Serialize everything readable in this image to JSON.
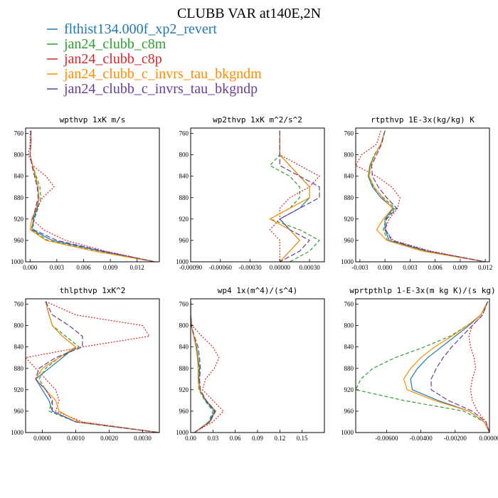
{
  "figure": {
    "title": "CLUBB VAR at140E,2N"
  },
  "legend": [
    {
      "label": "flthist134.000f_xp2_revert",
      "color": "#1f77b4",
      "dash": "solid"
    },
    {
      "label": "jan24_clubb_c8m",
      "color": "#2ca02c",
      "dash": "solid"
    },
    {
      "label": "jan24_clubb_c8p",
      "color": "#d62728",
      "dash": "solid"
    },
    {
      "label": "jan24_clubb_c_invrs_tau_bkgndm",
      "color": "#ff8c00",
      "dash": "solid"
    },
    {
      "label": "jan24_clubb_c_invrs_tau_bkgndp",
      "color": "#6a3d9a",
      "dash": "solid"
    }
  ],
  "series_styles": [
    {
      "color": "#1f77b4",
      "dash": ""
    },
    {
      "color": "#2ca02c",
      "dash": "5,3"
    },
    {
      "color": "#d62728",
      "dash": "2,2"
    },
    {
      "color": "#ff8c00",
      "dash": ""
    },
    {
      "color": "#6a3d9a",
      "dash": "7,3"
    }
  ],
  "chart_data": [
    {
      "type": "line",
      "title": "wpthvp  1xK m/s",
      "xlim": [
        -0.0005,
        0.0145
      ],
      "ylim": [
        1000,
        750
      ],
      "xticks": [
        0.0,
        0.003,
        0.006,
        0.009,
        0.012
      ],
      "xtick_labels": [
        "0.000",
        "0.003",
        "0.006",
        "0.009",
        "0.012"
      ],
      "yticks": [
        760,
        800,
        840,
        880,
        920,
        960,
        1000
      ],
      "y": [
        755,
        780,
        800,
        820,
        840,
        860,
        880,
        900,
        920,
        940,
        960,
        980,
        1000
      ],
      "series": [
        {
          "values": [
            0.0001,
            0.0001,
            0.0,
            0.0003,
            0.0006,
            0.0009,
            0.001,
            0.0008,
            0.0004,
            0.0002,
            0.0025,
            0.008,
            0.014
          ]
        },
        {
          "values": [
            0.0001,
            0.0001,
            0.0,
            0.0003,
            0.0007,
            0.0011,
            0.0012,
            0.0009,
            0.0005,
            0.0001,
            0.002,
            0.0075,
            0.014
          ]
        },
        {
          "values": [
            0.0,
            0.0,
            -0.0002,
            0.0003,
            0.0018,
            0.0027,
            0.0014,
            0.0008,
            0.0002,
            0.0015,
            0.004,
            0.0085,
            0.014
          ]
        },
        {
          "values": [
            0.0001,
            0.0001,
            0.0,
            0.0003,
            0.0006,
            0.0009,
            0.001,
            0.0007,
            0.0002,
            0.0,
            0.0018,
            0.0072,
            0.014
          ]
        },
        {
          "values": [
            0.0001,
            0.0001,
            0.0,
            0.0002,
            0.0005,
            0.0008,
            0.0009,
            0.0006,
            0.0003,
            0.0004,
            0.003,
            0.0082,
            0.014
          ]
        }
      ]
    },
    {
      "type": "line",
      "title": "wp2thvp  1xK m^2/s^2",
      "xlim": [
        -0.0009,
        0.00045
      ],
      "ylim": [
        1000,
        750
      ],
      "xticks": [
        -0.0009,
        -0.0006,
        -0.0003,
        0.0,
        0.0003
      ],
      "xtick_labels": [
        "-0.00090",
        "-0.00060",
        "-0.00030",
        "0.00000",
        "0.00030"
      ],
      "yticks": [
        760,
        800,
        840,
        880,
        920,
        960,
        1000
      ],
      "y": [
        755,
        780,
        800,
        820,
        840,
        860,
        880,
        900,
        920,
        940,
        960,
        980,
        1000
      ],
      "series": [
        {
          "values": [
            0.0,
            0.0,
            0.0,
            0.0001,
            0.0002,
            0.0003,
            0.0003,
            0.0002,
            0.0,
            0.0001,
            0.0002,
            0.0001,
            0.0
          ]
        },
        {
          "values": [
            0.0,
            0.0,
            0.0,
            -0.0001,
            0.0001,
            0.0002,
            0.0002,
            0.0001,
            -0.0001,
            0.0002,
            0.0004,
            0.0003,
            0.0001
          ]
        },
        {
          "values": [
            0.0,
            0.0,
            0.0,
            0.0002,
            0.0004,
            0.0003,
            0.0001,
            0.0,
            0.0,
            -0.0001,
            0.0,
            0.0,
            0.0
          ]
        },
        {
          "values": [
            0.0,
            0.0,
            0.0,
            0.0001,
            0.0002,
            0.0003,
            0.0003,
            0.0001,
            -0.0001,
            0.0001,
            0.0002,
            0.0001,
            0.0
          ]
        },
        {
          "values": [
            0.0,
            0.0,
            0.0,
            0.0,
            0.0002,
            0.0004,
            0.0004,
            0.0002,
            0.0,
            0.0001,
            0.0003,
            0.0002,
            0.0
          ]
        }
      ]
    },
    {
      "type": "line",
      "title": "rtpthvp  1E-3x(kg/kg) K",
      "xlim": [
        -0.0035,
        0.0125
      ],
      "ylim": [
        1000,
        750
      ],
      "xticks": [
        -0.003,
        0.0,
        0.003,
        0.006,
        0.009,
        0.012
      ],
      "xtick_labels": [
        "-0.003",
        "0.000",
        "0.003",
        "0.006",
        "0.009",
        "0.012"
      ],
      "yticks": [
        760,
        800,
        840,
        880,
        920,
        960,
        1000
      ],
      "y": [
        755,
        780,
        800,
        820,
        840,
        860,
        880,
        900,
        920,
        940,
        960,
        980,
        1000
      ],
      "series": [
        {
          "values": [
            0.0,
            -0.0005,
            -0.0012,
            -0.0018,
            -0.002,
            -0.0015,
            -0.0005,
            0.001,
            0.0,
            0.0,
            0.0005,
            0.005,
            0.012
          ]
        },
        {
          "values": [
            0.0,
            -0.0005,
            -0.0013,
            -0.0018,
            -0.002,
            -0.0014,
            -0.0002,
            0.0012,
            0.0001,
            -0.0002,
            0.0003,
            0.0048,
            0.012
          ]
        },
        {
          "values": [
            -0.0005,
            -0.001,
            -0.0028,
            -0.0035,
            -0.001,
            0.0008,
            0.0018,
            0.0015,
            0.0005,
            0.0,
            0.001,
            0.0055,
            0.012
          ]
        },
        {
          "values": [
            0.0,
            -0.0005,
            -0.0012,
            -0.0017,
            -0.0019,
            -0.0013,
            -0.0003,
            0.0009,
            -0.0002,
            -0.001,
            0.0002,
            0.0045,
            0.012
          ]
        },
        {
          "values": [
            0.0,
            -0.0004,
            -0.001,
            -0.0016,
            -0.0015,
            -0.0008,
            0.0002,
            0.0014,
            0.0002,
            0.0001,
            0.0008,
            0.0052,
            0.012
          ]
        }
      ]
    },
    {
      "type": "line",
      "title": "thlpthvp  1xK^2",
      "xlim": [
        -0.0005,
        0.0035
      ],
      "ylim": [
        1000,
        750
      ],
      "xticks": [
        0.0,
        0.001,
        0.002,
        0.003
      ],
      "xtick_labels": [
        "0.0000",
        "0.0010",
        "0.0020",
        "0.0030"
      ],
      "yticks": [
        760,
        800,
        840,
        880,
        920,
        960,
        1000
      ],
      "y": [
        755,
        780,
        800,
        820,
        840,
        860,
        880,
        900,
        920,
        940,
        960,
        980,
        1000
      ],
      "series": [
        {
          "values": [
            0.0001,
            0.0002,
            0.0003,
            0.0006,
            0.001,
            0.0006,
            0.0002,
            -0.0002,
            0.0,
            0.0002,
            0.0003,
            0.001,
            0.0035
          ]
        },
        {
          "values": [
            0.0001,
            0.0002,
            0.0003,
            0.0007,
            0.0011,
            0.0005,
            0.0001,
            -0.0001,
            0.0001,
            0.0003,
            0.0002,
            0.001,
            0.0035
          ]
        },
        {
          "values": [
            0.0001,
            0.001,
            0.003,
            0.0032,
            0.0012,
            -0.0005,
            -0.0002,
            0.0001,
            0.0004,
            0.0005,
            0.0004,
            0.0012,
            0.0035
          ]
        },
        {
          "values": [
            0.0001,
            0.0002,
            0.0003,
            0.0006,
            0.001,
            0.0005,
            0.0,
            -0.0002,
            0.0001,
            0.0004,
            0.0005,
            0.0011,
            0.0035
          ]
        },
        {
          "values": [
            0.0001,
            0.0003,
            0.0008,
            0.0012,
            0.0012,
            0.0004,
            -0.0001,
            -0.0002,
            0.0001,
            0.0003,
            0.0003,
            0.001,
            0.0035
          ]
        }
      ]
    },
    {
      "type": "line",
      "title": "wp4  1x(m^4)/(s^4)",
      "xlim": [
        0.0,
        0.18
      ],
      "ylim": [
        1000,
        750
      ],
      "xticks": [
        0.0,
        0.03,
        0.06,
        0.09,
        0.12,
        0.15
      ],
      "xtick_labels": [
        "0.00",
        "0.03",
        "0.06",
        "0.09",
        "0.12",
        "0.15"
      ],
      "yticks": [
        760,
        800,
        840,
        880,
        920,
        960,
        1000
      ],
      "y": [
        755,
        780,
        800,
        820,
        840,
        860,
        880,
        900,
        920,
        940,
        960,
        980,
        1000
      ],
      "series": [
        {
          "values": [
            0.0,
            0.0,
            0.001,
            0.004,
            0.008,
            0.01,
            0.012,
            0.011,
            0.012,
            0.02,
            0.032,
            0.025,
            0.005
          ]
        },
        {
          "values": [
            0.0,
            0.0,
            0.001,
            0.004,
            0.008,
            0.01,
            0.011,
            0.01,
            0.011,
            0.019,
            0.03,
            0.024,
            0.005
          ]
        },
        {
          "values": [
            0.0,
            0.0,
            0.002,
            0.015,
            0.03,
            0.038,
            0.032,
            0.02,
            0.016,
            0.03,
            0.044,
            0.03,
            0.005
          ]
        },
        {
          "values": [
            0.0,
            0.0,
            0.001,
            0.004,
            0.007,
            0.009,
            0.01,
            0.01,
            0.012,
            0.021,
            0.034,
            0.026,
            0.005
          ]
        },
        {
          "values": [
            0.0,
            0.0,
            0.001,
            0.005,
            0.01,
            0.012,
            0.013,
            0.012,
            0.013,
            0.021,
            0.033,
            0.026,
            0.005
          ]
        }
      ]
    },
    {
      "type": "line",
      "title": "wprtpthlp  1-E-3x(m kg K)/(s kg)",
      "xlim": [
        -0.0078,
        0.0
      ],
      "ylim": [
        1000,
        750
      ],
      "xticks": [
        -0.006,
        -0.004,
        -0.002,
        0.0
      ],
      "xtick_labels": [
        "-0.00600",
        "-0.00400",
        "-0.00200",
        "0.00000"
      ],
      "yticks": [
        760,
        800,
        840,
        880,
        920,
        960,
        1000
      ],
      "y": [
        755,
        780,
        800,
        820,
        840,
        860,
        880,
        900,
        920,
        940,
        960,
        980,
        1000
      ],
      "series": [
        {
          "values": [
            -0.0001,
            -0.0005,
            -0.0012,
            -0.002,
            -0.0028,
            -0.0036,
            -0.0042,
            -0.0046,
            -0.0045,
            -0.003,
            -0.0012,
            -0.0003,
            0.0
          ]
        },
        {
          "values": [
            -0.0001,
            -0.0005,
            -0.0013,
            -0.0023,
            -0.0038,
            -0.0055,
            -0.0068,
            -0.0075,
            -0.0078,
            -0.005,
            -0.0015,
            -0.0003,
            0.0
          ]
        },
        {
          "values": [
            -0.0001,
            -0.0004,
            -0.001,
            -0.0012,
            -0.0011,
            -0.0009,
            -0.0008,
            -0.001,
            -0.0011,
            -0.001,
            -0.0007,
            -0.0002,
            0.0
          ]
        },
        {
          "values": [
            -0.0001,
            -0.0005,
            -0.0013,
            -0.0022,
            -0.0032,
            -0.004,
            -0.0046,
            -0.005,
            -0.0048,
            -0.0032,
            -0.0012,
            -0.0003,
            0.0
          ]
        },
        {
          "values": [
            -0.0001,
            -0.0004,
            -0.001,
            -0.0016,
            -0.0022,
            -0.0027,
            -0.0031,
            -0.0034,
            -0.0034,
            -0.0024,
            -0.001,
            -0.0002,
            0.0
          ]
        }
      ]
    }
  ]
}
